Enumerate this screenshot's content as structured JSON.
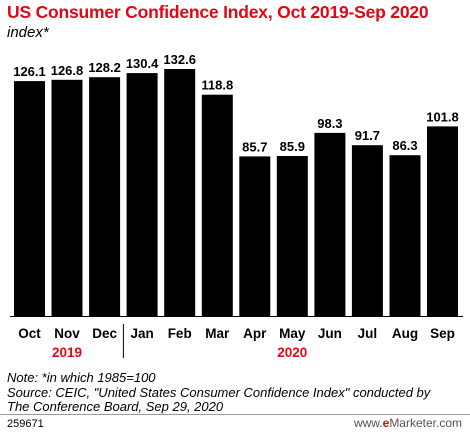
{
  "chart_data": {
    "type": "bar",
    "title": "US Consumer Confidence Index, Oct 2019-Sep 2020",
    "subtitle": "index*",
    "categories": [
      "Oct",
      "Nov",
      "Dec",
      "Jan",
      "Feb",
      "Mar",
      "Apr",
      "May",
      "Jun",
      "Jul",
      "Aug",
      "Sep"
    ],
    "values": [
      126.1,
      126.8,
      128.2,
      130.4,
      132.6,
      118.8,
      85.7,
      85.9,
      98.3,
      91.7,
      86.3,
      101.8
    ],
    "value_labels": [
      "126.1",
      "126.8",
      "128.2",
      "130.4",
      "132.6",
      "118.8",
      "85.7",
      "85.9",
      "98.3",
      "91.7",
      "86.3",
      "101.8"
    ],
    "year_groups": [
      {
        "label": "2019",
        "start": 0,
        "end": 2
      },
      {
        "label": "2020",
        "start": 3,
        "end": 11
      }
    ],
    "ylim": [
      0,
      140
    ],
    "grid": false,
    "bar_color": "#000000",
    "year_color": "#e30613"
  },
  "notes": {
    "line1": "Note: *in which 1985=100",
    "line2": "Source: CEIC, \"United States Consumer Confidence Index\" conducted by",
    "line3": "The Conference Board, Sep 29, 2020"
  },
  "footer": {
    "chart_id": "259671",
    "brand_prefix": "www.",
    "brand_e": "e",
    "brand_rest": "Marketer.com"
  }
}
